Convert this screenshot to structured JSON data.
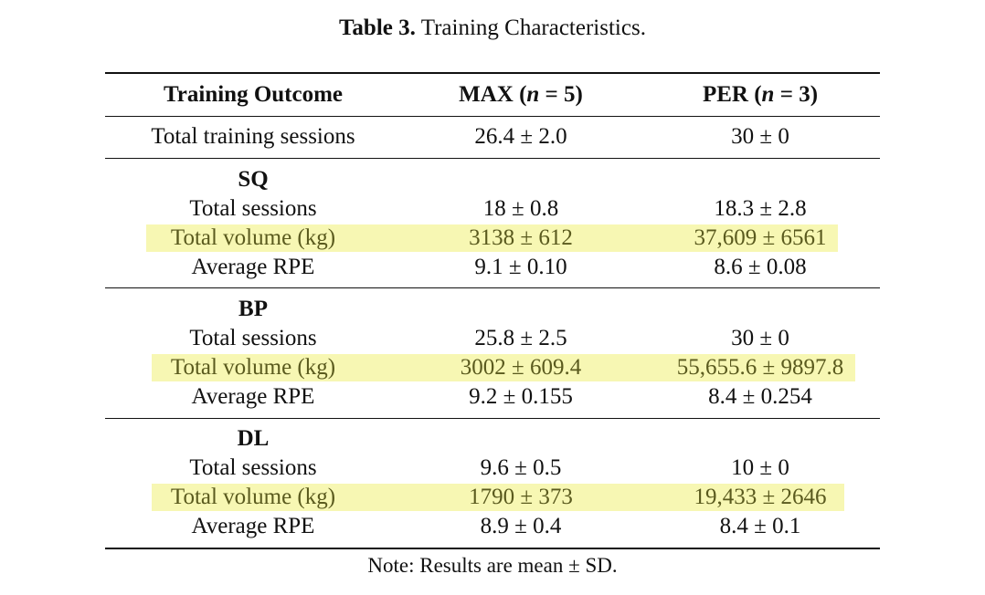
{
  "caption": {
    "label": "Table 3.",
    "text": "Training Characteristics."
  },
  "header": {
    "col0": "Training Outcome",
    "col1_prefix": "MAX (",
    "col1_n": "n",
    "col1_suffix": " = 5)",
    "col2_prefix": "PER (",
    "col2_n": "n",
    "col2_suffix": " = 3)"
  },
  "total_row": {
    "label": "Total training sessions",
    "max": "26.4 ± 2.0",
    "per": "30 ± 0"
  },
  "groups": [
    {
      "name": "SQ",
      "rows": [
        {
          "label": "Total sessions",
          "max": "18 ± 0.8",
          "per": "18.3 ± 2.8"
        },
        {
          "label": "Total volume (kg)",
          "max": "3138 ± 612",
          "per": "37,609 ± 6561"
        },
        {
          "label": "Average RPE",
          "max": "9.1 ± 0.10",
          "per": "8.6 ± 0.08"
        }
      ]
    },
    {
      "name": "BP",
      "rows": [
        {
          "label": "Total sessions",
          "max": "25.8 ± 2.5",
          "per": "30 ± 0"
        },
        {
          "label": "Total volume (kg)",
          "max": "3002 ± 609.4",
          "per": "55,655.6 ± 9897.8"
        },
        {
          "label": "Average RPE",
          "max": "9.2 ± 0.155",
          "per": "8.4 ± 0.254"
        }
      ]
    },
    {
      "name": "DL",
      "rows": [
        {
          "label": "Total sessions",
          "max": "9.6 ± 0.5",
          "per": "10 ± 0"
        },
        {
          "label": "Total volume (kg)",
          "max": "1790 ± 373",
          "per": "19,433 ± 2646"
        },
        {
          "label": "Average RPE",
          "max": "8.9 ± 0.4",
          "per": "8.4 ± 0.1"
        }
      ]
    }
  ],
  "note": "Note: Results are mean ± SD.",
  "colors": {
    "highlight": "#f7f7b3",
    "rule": "#111111"
  }
}
